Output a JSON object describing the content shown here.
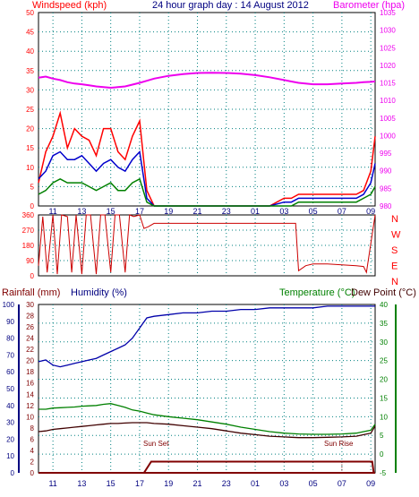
{
  "colors": {
    "windspeed": "#ff0000",
    "wind_avg": "#0000cc",
    "wind_low": "#008000",
    "barometer": "#ee00ee",
    "direction": "#cc0000",
    "rain": "#800000",
    "humidity": "#0000aa",
    "temperature": "#008000",
    "dewpoint": "#400000",
    "axis_blue": "#000080",
    "grid": "#008080"
  },
  "chart_data": [
    {
      "type": "line",
      "title": "24 hour graph day : 14 August 2012",
      "ylabel_left": "Windspeed (kph)",
      "ylabel_right": "Barometer (hpa)",
      "ylim_left": [
        0,
        50
      ],
      "yticks_left": [
        "0",
        "5",
        "10",
        "15",
        "20",
        "25",
        "30",
        "35",
        "40",
        "45",
        "50"
      ],
      "ylim_right": [
        980,
        1035
      ],
      "yticks_right": [
        "980",
        "985",
        "990",
        "995",
        "1000",
        "1005",
        "1010",
        "1015",
        "1020",
        "1025",
        "1030",
        "1035"
      ],
      "x_hours": [
        10,
        10.5,
        11,
        11.5,
        12,
        12.5,
        13,
        13.5,
        14,
        14.5,
        15,
        15.5,
        16,
        16.5,
        17,
        17.5,
        18,
        19,
        20,
        21,
        22,
        23,
        24,
        25,
        26,
        27,
        27.5,
        28,
        29,
        30,
        31,
        32,
        32.5,
        33,
        33.3
      ],
      "xticks": [
        "11",
        "13",
        "15",
        "17",
        "19",
        "21",
        "23",
        "01",
        "03",
        "05",
        "07",
        "09"
      ],
      "grid": true,
      "series": [
        {
          "name": "Windspeed (kph)",
          "axis": "left",
          "values": [
            6,
            14,
            18,
            24,
            15,
            20,
            18,
            17,
            13,
            20,
            20,
            14,
            12,
            18,
            22,
            4,
            0,
            0,
            0,
            0,
            0,
            0,
            0,
            0,
            0,
            2,
            2,
            3,
            3,
            3,
            3,
            3,
            4,
            9,
            18
          ]
        },
        {
          "name": "",
          "axis": "left",
          "values": [
            7,
            9,
            13,
            14,
            12,
            12,
            13,
            11,
            9,
            11,
            12,
            10,
            9,
            12,
            14,
            2,
            0,
            0,
            0,
            0,
            0,
            0,
            0,
            0,
            0,
            1,
            1,
            2,
            2,
            2,
            2,
            2,
            3,
            6,
            11
          ]
        },
        {
          "name": "",
          "axis": "left",
          "values": [
            3,
            4,
            6,
            7,
            6,
            6,
            6,
            5,
            4,
            5,
            6,
            4,
            4,
            6,
            7,
            1,
            0,
            0,
            0,
            0,
            0,
            0,
            0,
            0,
            0,
            0,
            0,
            1,
            1,
            1,
            1,
            1,
            2,
            3,
            5
          ]
        },
        {
          "name": "Barometer (hpa)",
          "axis": "right",
          "values": [
            1016.5,
            1016.8,
            1016.2,
            1015.8,
            1015.2,
            1014.8,
            1014.6,
            1014.3,
            1014.0,
            1013.8,
            1013.6,
            1013.8,
            1014.0,
            1014.5,
            1015.0,
            1015.6,
            1016.2,
            1017.0,
            1017.5,
            1017.8,
            1017.9,
            1017.8,
            1017.6,
            1017.2,
            1016.6,
            1015.8,
            1015.4,
            1015.0,
            1014.6,
            1014.6,
            1014.8,
            1015.0,
            1015.2,
            1015.3,
            1015.4
          ]
        }
      ]
    },
    {
      "type": "line",
      "ylim": [
        0,
        360
      ],
      "yticks": [
        "0",
        "90",
        "180",
        "270",
        "360"
      ],
      "direction_labels": [
        "N",
        "W",
        "S",
        "E",
        "N"
      ],
      "x_hours": [
        10,
        10.3,
        10.6,
        11,
        11.3,
        11.6,
        12,
        12.3,
        12.6,
        13,
        13.3,
        13.6,
        14,
        14.3,
        14.6,
        15,
        15.3,
        15.6,
        16,
        16.3,
        16.6,
        17,
        17.3,
        17.6,
        18,
        19,
        20,
        21,
        22,
        23,
        24,
        25,
        26,
        27,
        27.8,
        28,
        28.5,
        29,
        30,
        31,
        32,
        32.5,
        32.7,
        33.3
      ],
      "series": [
        {
          "name": "",
          "values": [
            60,
            350,
            20,
            360,
            10,
            360,
            350,
            20,
            360,
            10,
            360,
            360,
            10,
            360,
            360,
            20,
            360,
            360,
            20,
            360,
            350,
            360,
            280,
            290,
            310,
            310,
            310,
            310,
            310,
            310,
            310,
            310,
            310,
            310,
            310,
            30,
            60,
            70,
            70,
            65,
            60,
            55,
            20,
            360
          ]
        }
      ]
    },
    {
      "type": "line",
      "ylabel_left": "Rainfall (mm)",
      "ylabel_left2": "Humidity (%)",
      "ylabel_right": "Temperature (°C)",
      "ylabel_right2": "Dew Point (°C)",
      "yticks_rain": [
        "0",
        "2",
        "4",
        "6",
        "8",
        "10",
        "12",
        "14",
        "16",
        "18",
        "20",
        "22",
        "24",
        "26",
        "28",
        "30"
      ],
      "yticks_humidity": [
        "0",
        "10",
        "20",
        "30",
        "40",
        "50",
        "60",
        "70",
        "80",
        "90",
        "100"
      ],
      "yticks_temperature": [
        "-5",
        "0",
        "5",
        "10",
        "15",
        "20",
        "25",
        "30",
        "35",
        "40"
      ],
      "x_hours": [
        10,
        10.5,
        11,
        11.5,
        12,
        12.5,
        13,
        13.5,
        14,
        14.5,
        15,
        15.5,
        16,
        16.5,
        17,
        17.5,
        18,
        19,
        20,
        21,
        22,
        23,
        24,
        25,
        26,
        27,
        27.5,
        28,
        29,
        30,
        31,
        32,
        32.5,
        33,
        33.3
      ],
      "annotations": [
        "Sun Set",
        "Sun Rise"
      ],
      "series": [
        {
          "name": "Humidity (%)",
          "axis": "humidity",
          "values": [
            66,
            67,
            64,
            63,
            64,
            65,
            66,
            67,
            68,
            70,
            72,
            74,
            76,
            80,
            86,
            92,
            93,
            94,
            95,
            95,
            96,
            96,
            97,
            97,
            98,
            98,
            98,
            98,
            98,
            99,
            99,
            99,
            99,
            99,
            99
          ]
        },
        {
          "name": "Temperature (°C)",
          "axis": "temperature",
          "values": [
            12.0,
            12.0,
            12.3,
            12.4,
            12.5,
            12.6,
            12.8,
            12.9,
            13.0,
            13.3,
            13.5,
            13.0,
            12.5,
            11.8,
            11.5,
            11.0,
            10.5,
            10.0,
            9.6,
            9.2,
            8.6,
            8.0,
            7.2,
            6.6,
            6.0,
            5.6,
            5.5,
            5.4,
            5.3,
            5.3,
            5.4,
            5.6,
            6.0,
            6.4,
            8.0
          ]
        },
        {
          "name": "Dew Point (°C)",
          "axis": "temperature",
          "values": [
            6.0,
            6.2,
            6.6,
            6.8,
            7.0,
            7.2,
            7.4,
            7.6,
            7.8,
            8.0,
            8.2,
            8.2,
            8.3,
            8.4,
            8.4,
            8.4,
            8.2,
            8.0,
            7.6,
            7.2,
            6.8,
            6.2,
            5.6,
            5.2,
            4.8,
            4.6,
            4.5,
            4.4,
            4.4,
            4.5,
            4.6,
            4.8,
            5.2,
            5.6,
            7.5
          ]
        },
        {
          "name": "Rainfall (mm)",
          "axis": "rain",
          "values": [
            0,
            0,
            0,
            0,
            0,
            0,
            0,
            0,
            0,
            0,
            0,
            0,
            0,
            0,
            0,
            0,
            0,
            0,
            0,
            0,
            0,
            0,
            0,
            0,
            0,
            0,
            0,
            0,
            0,
            0,
            0,
            0,
            0,
            0,
            0
          ]
        }
      ]
    }
  ]
}
